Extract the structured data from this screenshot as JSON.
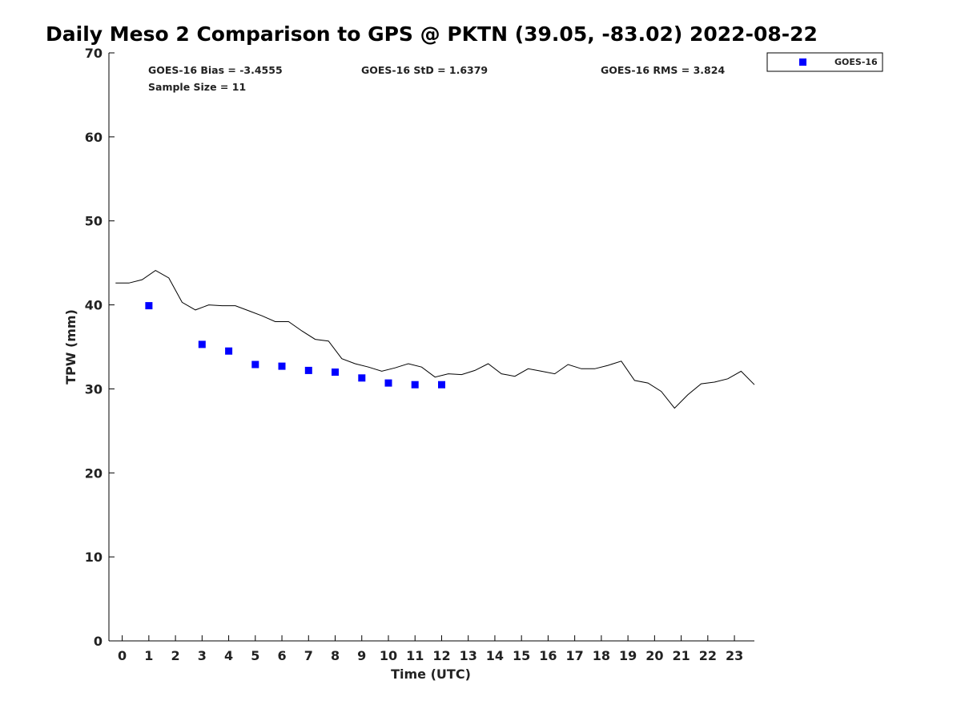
{
  "chart_data": {
    "type": "scatter",
    "title": "Daily Meso 2 Comparison to GPS @ PKTN (39.05, -83.02) 2022-08-22",
    "xlabel": "Time (UTC)",
    "ylabel": "TPW (mm)",
    "xlim": [
      -0.5,
      23.75
    ],
    "ylim": [
      0,
      70
    ],
    "grid": false,
    "legend_position": "top-right",
    "xticks": [
      "0",
      "1",
      "2",
      "3",
      "4",
      "5",
      "6",
      "7",
      "8",
      "9",
      "10",
      "11",
      "12",
      "13",
      "14",
      "15",
      "16",
      "17",
      "18",
      "19",
      "20",
      "21",
      "22",
      "23"
    ],
    "yticks": [
      "0",
      "10",
      "20",
      "30",
      "40",
      "50",
      "60",
      "70"
    ],
    "stats": [
      "GOES-16 Bias = -3.4555",
      "GOES-16 StD = 1.6379",
      "GOES-16 RMS = 3.824",
      "Sample Size = 11"
    ],
    "series": [
      {
        "name": "GOES-16",
        "type": "scatter",
        "color": "#0000ff",
        "x": [
          1,
          3,
          4,
          5,
          6,
          7,
          8,
          9,
          10,
          11,
          12
        ],
        "y": [
          39.9,
          35.3,
          34.5,
          32.9,
          32.7,
          32.2,
          32.0,
          31.3,
          30.7,
          30.5,
          30.5
        ]
      },
      {
        "type": "line",
        "color": "#000000",
        "x": [
          -0.25,
          0.25,
          0.75,
          1.25,
          1.75,
          2.25,
          2.75,
          3.25,
          3.75,
          4.25,
          4.75,
          5.25,
          5.75,
          6.25,
          6.75,
          7.25,
          7.75,
          8.25,
          8.75,
          9.25,
          9.75,
          10.25,
          10.75,
          11.25,
          11.75,
          12.25,
          12.75,
          13.25,
          13.75,
          14.25,
          14.75,
          15.25,
          15.75,
          16.25,
          16.75,
          17.25,
          17.75,
          18.25,
          18.75,
          19.25,
          19.75,
          20.25,
          20.75,
          21.25,
          21.75,
          22.25,
          22.75,
          23.25,
          23.75
        ],
        "y": [
          42.6,
          42.6,
          43.0,
          44.1,
          43.2,
          40.3,
          39.4,
          40.0,
          39.9,
          39.9,
          39.3,
          38.7,
          38.0,
          38.0,
          36.9,
          35.9,
          35.7,
          33.6,
          33.0,
          32.6,
          32.1,
          32.5,
          33.0,
          32.6,
          31.4,
          31.8,
          31.7,
          32.2,
          33.0,
          31.8,
          31.5,
          32.4,
          32.1,
          31.8,
          32.9,
          32.4,
          32.4,
          32.8,
          33.3,
          31.0,
          30.7,
          29.7,
          27.7,
          29.3,
          30.6,
          30.8,
          31.2,
          32.1,
          30.5
        ]
      }
    ]
  }
}
